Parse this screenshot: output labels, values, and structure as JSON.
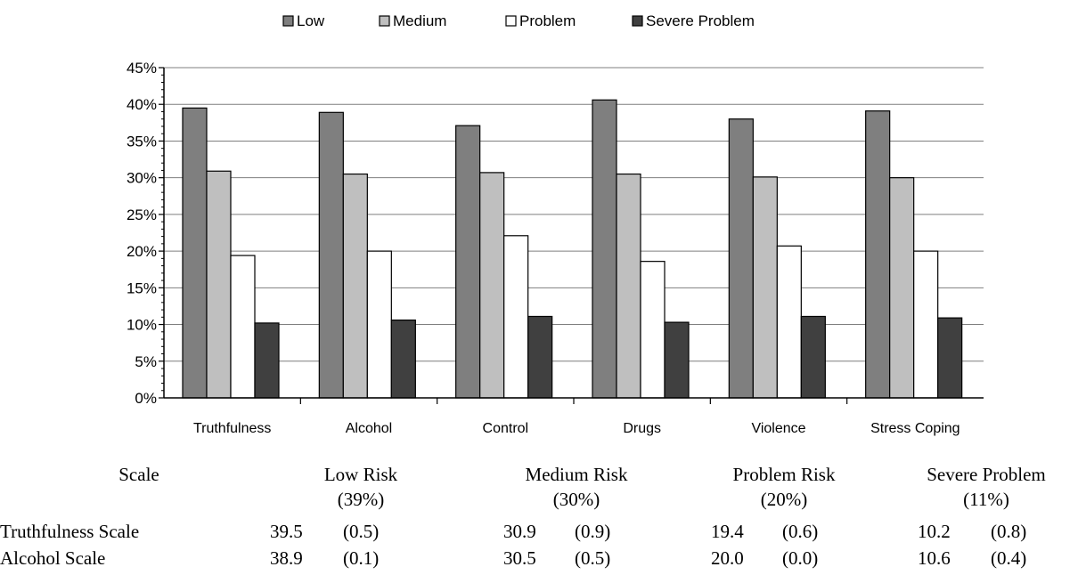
{
  "chart_data": {
    "type": "bar",
    "categories": [
      "Truthfulness",
      "Alcohol",
      "Control",
      "Drugs",
      "Violence",
      "Stress Coping"
    ],
    "series": [
      {
        "name": "Low",
        "color": "#7f7f7f",
        "values": [
          39.5,
          38.9,
          37.1,
          40.6,
          38.0,
          39.1
        ]
      },
      {
        "name": "Medium",
        "color": "#bfbfbf",
        "values": [
          30.9,
          30.5,
          30.7,
          30.5,
          30.1,
          30.0
        ]
      },
      {
        "name": "Problem",
        "color": "#ffffff",
        "values": [
          19.4,
          20.0,
          22.1,
          18.6,
          20.7,
          20.0
        ]
      },
      {
        "name": "Severe Problem",
        "color": "#404040",
        "values": [
          10.2,
          10.6,
          11.1,
          10.3,
          11.1,
          10.9
        ]
      }
    ],
    "yticks": [
      "0%",
      "5%",
      "10%",
      "15%",
      "20%",
      "25%",
      "30%",
      "35%",
      "40%",
      "45%"
    ],
    "ylim": [
      0,
      45
    ],
    "ylabel": "",
    "xlabel": "",
    "title": "",
    "grid": true,
    "legend_position": "top-center"
  },
  "table": {
    "headers": [
      {
        "line1": "Scale",
        "line2": ""
      },
      {
        "line1": "Low Risk",
        "line2": "(39%)"
      },
      {
        "line1": "Medium Risk",
        "line2": "(30%)"
      },
      {
        "line1": "Problem Risk",
        "line2": "(20%)"
      },
      {
        "line1": "Severe Problem",
        "line2": "(11%)"
      }
    ],
    "rows": [
      {
        "label": "Truthfulness Scale",
        "cells": [
          [
            "39.5",
            "(0.5)"
          ],
          [
            "30.9",
            "(0.9)"
          ],
          [
            "19.4",
            "(0.6)"
          ],
          [
            "10.2",
            "(0.8)"
          ]
        ]
      },
      {
        "label": "Alcohol Scale",
        "cells": [
          [
            "38.9",
            "(0.1)"
          ],
          [
            "30.5",
            "(0.5)"
          ],
          [
            "20.0",
            "(0.0)"
          ],
          [
            "10.6",
            "(0.4)"
          ]
        ]
      }
    ]
  }
}
